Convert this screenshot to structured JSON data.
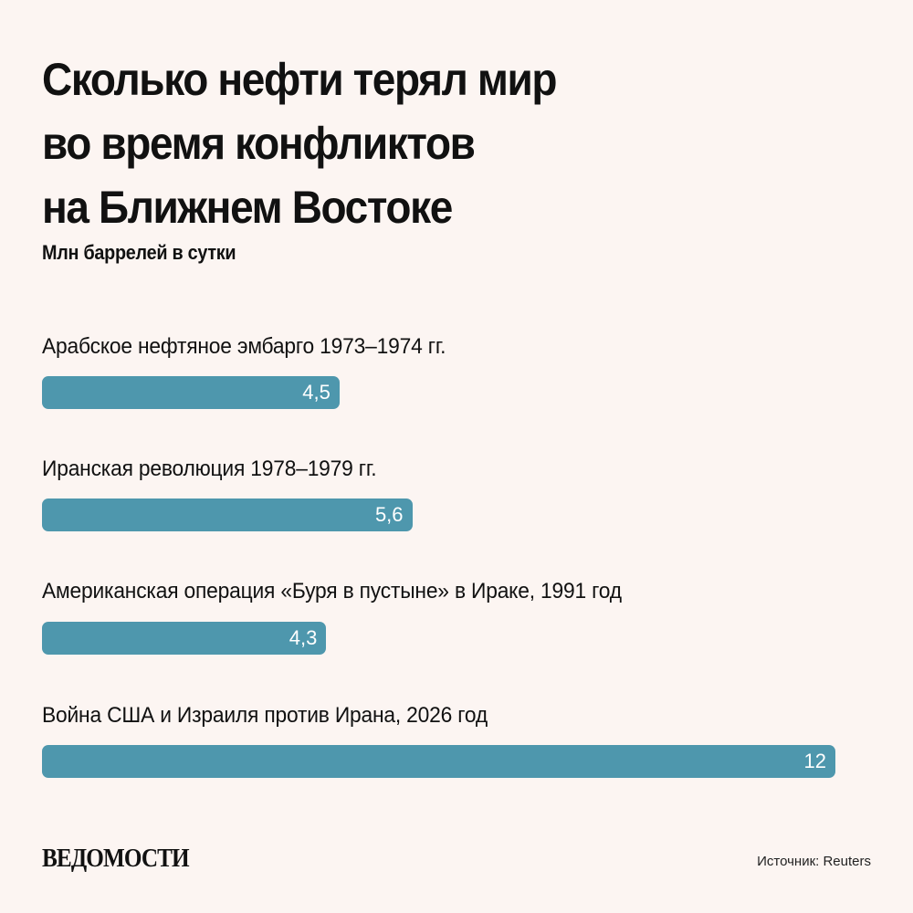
{
  "header": {
    "title_lines": [
      "Сколько нефти терял мир",
      "во время конфликтов",
      "на Ближнем Востоке"
    ],
    "subtitle": "Млн баррелей в сутки"
  },
  "footer": {
    "logo": "ВЕДОМОСТИ",
    "source": "Источник: Reuters"
  },
  "colors": {
    "background": "#fcf5f2",
    "bar": "#4e97ad",
    "bar_text": "#ffffff"
  },
  "chart_data": {
    "type": "bar",
    "orientation": "horizontal",
    "title": "Сколько нефти терял мир во время конфликтов на Ближнем Востоке",
    "subtitle": "Млн баррелей в сутки",
    "xlabel": "",
    "ylabel": "",
    "unit": "Млн баррелей в сутки",
    "grid": false,
    "legend": null,
    "categories": [
      "Арабское нефтяное эмбарго 1973–1974 гг.",
      "Иранская революция 1978–1979 гг.",
      "Американская операция «Буря в пустыне» в Ираке, 1991 год",
      "Война США и Израиля против Ирана, 2026 год"
    ],
    "values": [
      4.5,
      5.6,
      4.3,
      12
    ],
    "value_labels": [
      "4,5",
      "5,6",
      "4,3",
      "12"
    ],
    "xlim": [
      0,
      12
    ],
    "source": "Источник: Reuters"
  },
  "rows": [
    {
      "label": "Арабское нефтяное эмбарго 1973–1974 гг.",
      "value": 4.5,
      "value_label": "4,5"
    },
    {
      "label": "Иранская революция 1978–1979 гг.",
      "value": 5.6,
      "value_label": "5,6"
    },
    {
      "label": "Американская операция «Буря в пустыне» в Ираке, 1991 год",
      "value": 4.3,
      "value_label": "4,3"
    },
    {
      "label": "Война США и Израиля против Ирана, 2026 год",
      "value": 12,
      "value_label": "12"
    }
  ]
}
